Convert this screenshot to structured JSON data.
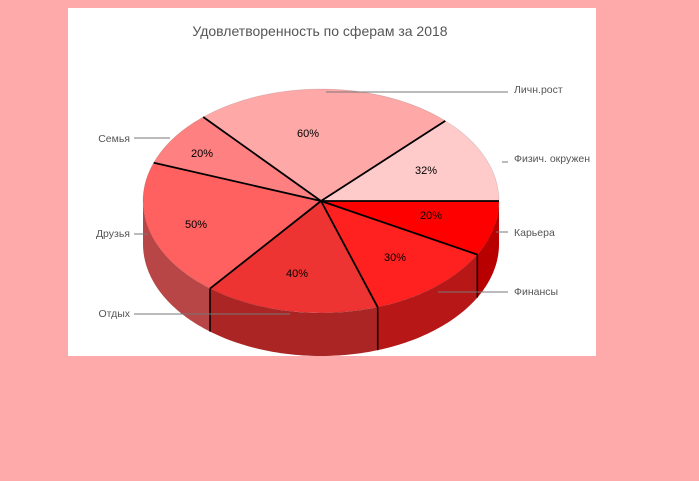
{
  "chart_data": {
    "type": "pie",
    "title": "Удовлетворенность по сферам за 2018",
    "slices": [
      {
        "category": "Карьера",
        "value_label": "20%",
        "value": 20,
        "color": "#ff0000"
      },
      {
        "category": "Финансы",
        "value_label": "30%",
        "value": 30,
        "color": "#ff2020"
      },
      {
        "category": "Отдых",
        "value_label": "40%",
        "value": 40,
        "color": "#ee3333"
      },
      {
        "category": "Друзья",
        "value_label": "50%",
        "value": 50,
        "color": "#ff6161"
      },
      {
        "category": "Семья",
        "value_label": "20%",
        "value": 20,
        "color": "#ff8080"
      },
      {
        "category": "Личн.рост",
        "value_label": "60%",
        "value": 60,
        "color": "#ffa8a8"
      },
      {
        "category": "Физич. окружен",
        "value_label": "32%",
        "value": 32,
        "color": "#ffcaca"
      }
    ]
  },
  "colors": {
    "page_background": "#ffaaaa",
    "panel_background": "#ffffff",
    "label_text": "#555555",
    "leader_line": "#777777",
    "divider": "#000000"
  }
}
